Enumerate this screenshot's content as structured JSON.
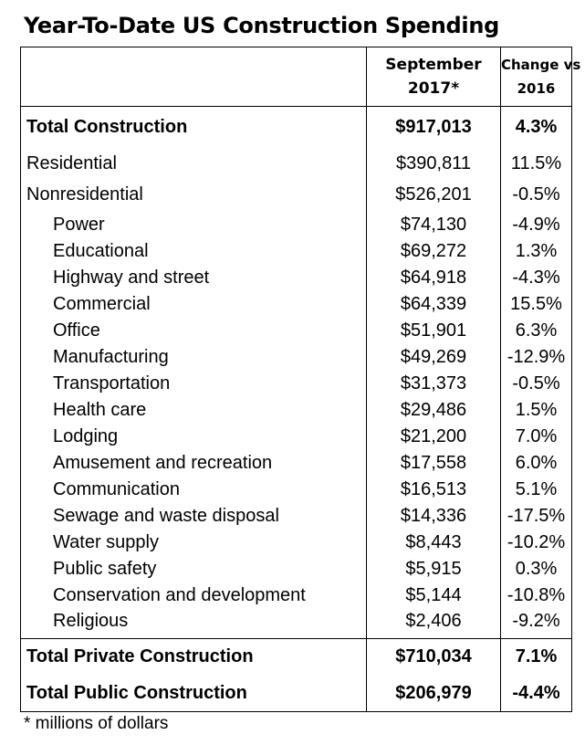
{
  "title": "Year-To-Date US Construction Spending",
  "header": {
    "col2_line1": "September",
    "col2_line2": "2017*",
    "col3_line1": "Change vs",
    "col3_line2": "2016"
  },
  "total_construction": {
    "label": "Total Construction",
    "value": "$917,013",
    "change": "4.3%"
  },
  "residential": {
    "label": "Residential",
    "value": "$390,811",
    "change": "11.5%"
  },
  "nonresidential": {
    "label": "Nonresidential",
    "value": "$526,201",
    "change": "-0.5%"
  },
  "nonresidential_items": [
    {
      "label": "Power",
      "value": "$74,130",
      "change": "-4.9%"
    },
    {
      "label": "Educational",
      "value": "$69,272",
      "change": "1.3%"
    },
    {
      "label": "Highway and street",
      "value": "$64,918",
      "change": "-4.3%"
    },
    {
      "label": "Commercial",
      "value": "$64,339",
      "change": "15.5%"
    },
    {
      "label": "Office",
      "value": "$51,901",
      "change": "6.3%"
    },
    {
      "label": "Manufacturing",
      "value": "$49,269",
      "change": "-12.9%"
    },
    {
      "label": "Transportation",
      "value": "$31,373",
      "change": "-0.5%"
    },
    {
      "label": "Health care",
      "value": "$29,486",
      "change": "1.5%"
    },
    {
      "label": "Lodging",
      "value": "$21,200",
      "change": "7.0%"
    },
    {
      "label": "Amusement and recreation",
      "value": "$17,558",
      "change": "6.0%"
    },
    {
      "label": "Communication",
      "value": "$16,513",
      "change": "5.1%"
    },
    {
      "label": "Sewage and waste disposal",
      "value": "$14,336",
      "change": "-17.5%"
    },
    {
      "label": "Water supply",
      "value": "$8,443",
      "change": "-10.2%"
    },
    {
      "label": "Public safety",
      "value": "$5,915",
      "change": "0.3%"
    },
    {
      "label": "Conservation and development",
      "value": "$5,144",
      "change": "-10.8%"
    },
    {
      "label": "Religious",
      "value": "$2,406",
      "change": "-9.2%"
    }
  ],
  "total_private": {
    "label": "Total Private Construction",
    "value": "$710,034",
    "change": "7.1%"
  },
  "total_public": {
    "label": "Total Public Construction",
    "value": "$206,979",
    "change": "-4.4%"
  },
  "footnote": "* millions of dollars"
}
